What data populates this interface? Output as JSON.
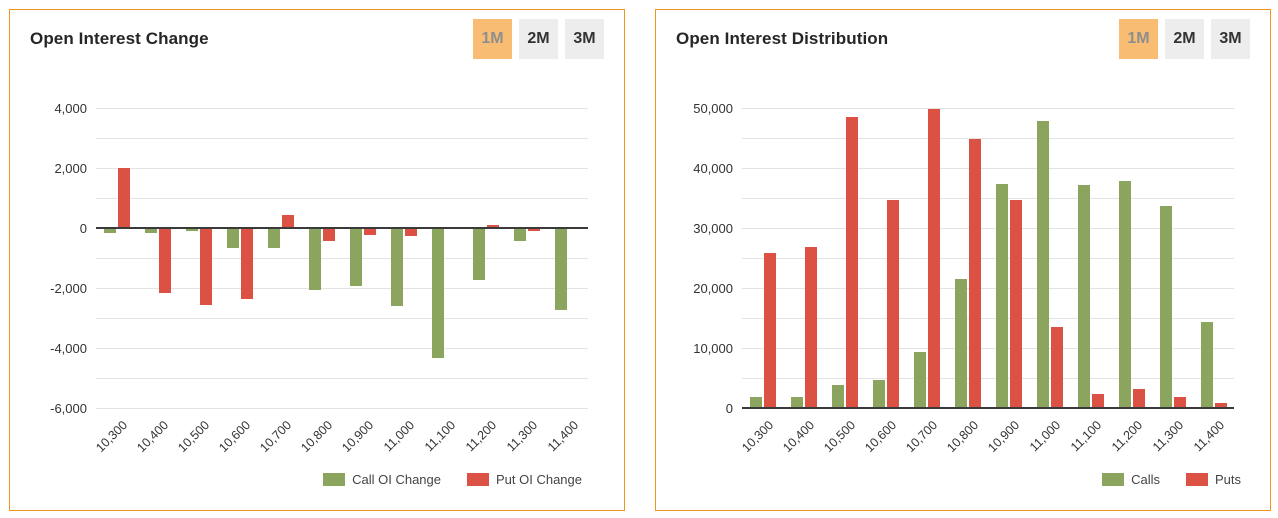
{
  "panels": [
    {
      "title": "Open Interest Change",
      "buttons": [
        {
          "label": "1M",
          "active": true
        },
        {
          "label": "2M",
          "active": false
        },
        {
          "label": "3M",
          "active": false
        }
      ]
    },
    {
      "title": "Open Interest Distribution",
      "buttons": [
        {
          "label": "1M",
          "active": true
        },
        {
          "label": "2M",
          "active": false
        },
        {
          "label": "3M",
          "active": false
        }
      ]
    }
  ],
  "colors": {
    "call_green": "#8BA55E",
    "put_red": "#DB5244",
    "panel_border": "#F0941E",
    "active_button_bg": "#F8BC72",
    "gridline": "#E3E3E3",
    "zero_axis": "#3A3A3A"
  },
  "chart_data": [
    {
      "type": "bar",
      "title": "Open Interest Change",
      "categories": [
        "10,300",
        "10,400",
        "10,500",
        "10,600",
        "10,700",
        "10,800",
        "10,900",
        "11,000",
        "11,100",
        "11,200",
        "11,300",
        "11,400"
      ],
      "series": [
        {
          "name": "Call OI Change",
          "color": "#8BA55E",
          "values": [
            -150,
            -170,
            -90,
            -680,
            -650,
            -2050,
            -1920,
            -2590,
            -4330,
            -1740,
            -420,
            -2740
          ]
        },
        {
          "name": "Put OI Change",
          "color": "#DB5244",
          "values": [
            2000,
            -2150,
            -2550,
            -2380,
            420,
            -430,
            -230,
            -280,
            50,
            90,
            -110,
            40
          ]
        }
      ],
      "ylim": [
        -6000,
        4000
      ],
      "ytick": 2000,
      "grid_step": 1000,
      "legend_position": "bottom-right",
      "grid": true
    },
    {
      "type": "bar",
      "title": "Open Interest Distribution",
      "categories": [
        "10,300",
        "10,400",
        "10,500",
        "10,600",
        "10,700",
        "10,800",
        "10,900",
        "11,000",
        "11,100",
        "11,200",
        "11,300",
        "11,400"
      ],
      "series": [
        {
          "name": "Calls",
          "color": "#8BA55E",
          "values": [
            1800,
            1800,
            3800,
            4700,
            9400,
            21500,
            37400,
            47900,
            37200,
            37800,
            33700,
            14300
          ]
        },
        {
          "name": "Puts",
          "color": "#DB5244",
          "values": [
            25800,
            26900,
            48500,
            34700,
            49900,
            44900,
            34600,
            13500,
            2400,
            3200,
            1800,
            900
          ]
        }
      ],
      "ylim": [
        0,
        50000
      ],
      "ytick": 10000,
      "grid_step": 5000,
      "legend_position": "bottom-right",
      "grid": true
    }
  ]
}
